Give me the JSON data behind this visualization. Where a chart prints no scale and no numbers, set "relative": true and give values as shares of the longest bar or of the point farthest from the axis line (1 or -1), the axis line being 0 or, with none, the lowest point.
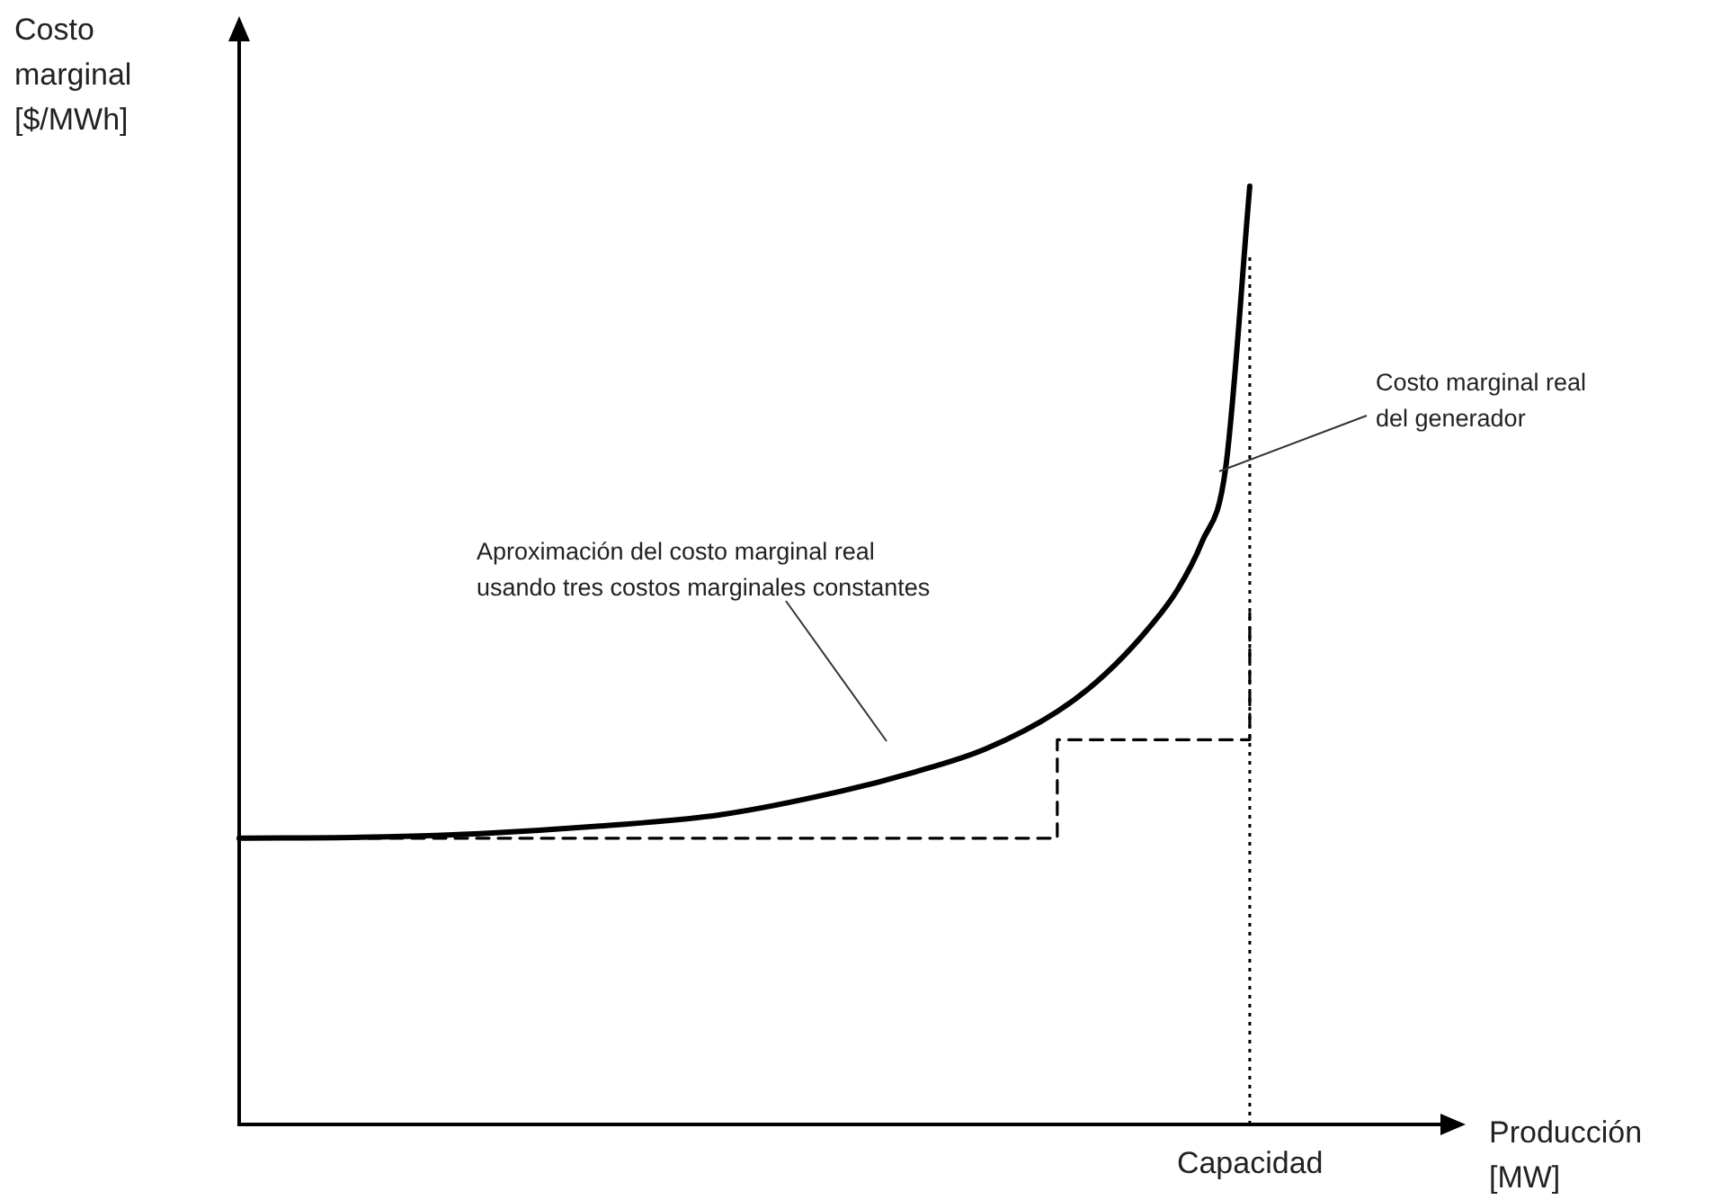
{
  "chart_data": {
    "type": "line",
    "relative": true,
    "xlabel": "Producción\n[MW]",
    "ylabel": "Costo\nmarginal\n[$/MWh]",
    "categories": [
      null,
      null,
      null,
      null,
      null,
      null,
      null,
      null,
      null,
      null,
      null,
      null,
      null,
      null,
      null,
      null,
      null,
      null,
      null,
      null,
      null,
      null,
      null,
      null,
      null,
      null,
      null,
      null,
      null,
      null,
      null,
      null,
      null,
      null,
      null,
      null,
      null,
      null,
      null,
      null,
      null,
      null,
      null,
      null,
      null,
      null,
      null,
      null,
      null,
      null,
      null
    ],
    "series": [
      {
        "color": "#000000",
        "line_style": "solid",
        "values": [
          0.305,
          null,
          null,
          null,
          null,
          0.306,
          null,
          null,
          null,
          null,
          0.31,
          null,
          null,
          null,
          null,
          0.318,
          null,
          null,
          null,
          null,
          0.33,
          null,
          null,
          null,
          null,
          0.355,
          null,
          null,
          0.375,
          null,
          null,
          0.4,
          null,
          null,
          0.44,
          null,
          0.48,
          null,
          0.535,
          0.57,
          0.62,
          0.7,
          1.0,
          null,
          null,
          null,
          null,
          null,
          null,
          null,
          null
        ]
      },
      {
        "type": "step",
        "color": "#000000",
        "line_style": "dashed",
        "values": [
          0.305,
          null,
          null,
          null,
          null,
          null,
          null,
          null,
          null,
          null,
          null,
          null,
          null,
          null,
          null,
          null,
          null,
          null,
          null,
          null,
          null,
          null,
          null,
          null,
          null,
          null,
          null,
          0.305,
          null,
          null,
          null,
          null,
          null,
          null,
          0.41,
          null,
          null,
          null,
          null,
          null,
          null,
          null,
          0.545,
          null,
          null,
          null,
          null,
          null,
          null,
          null,
          null
        ]
      }
    ],
    "ref_lines": [
      {
        "axis": "x",
        "label": "Capacidad",
        "line_style": "dotted",
        "color": "#000000"
      }
    ],
    "annotations": [
      "Aproximación del costo marginal real\nusando tres costos marginales constantes",
      "Costo marginal real\ndel generador"
    ],
    "grid": false,
    "legend": false,
    "marker": "none"
  }
}
